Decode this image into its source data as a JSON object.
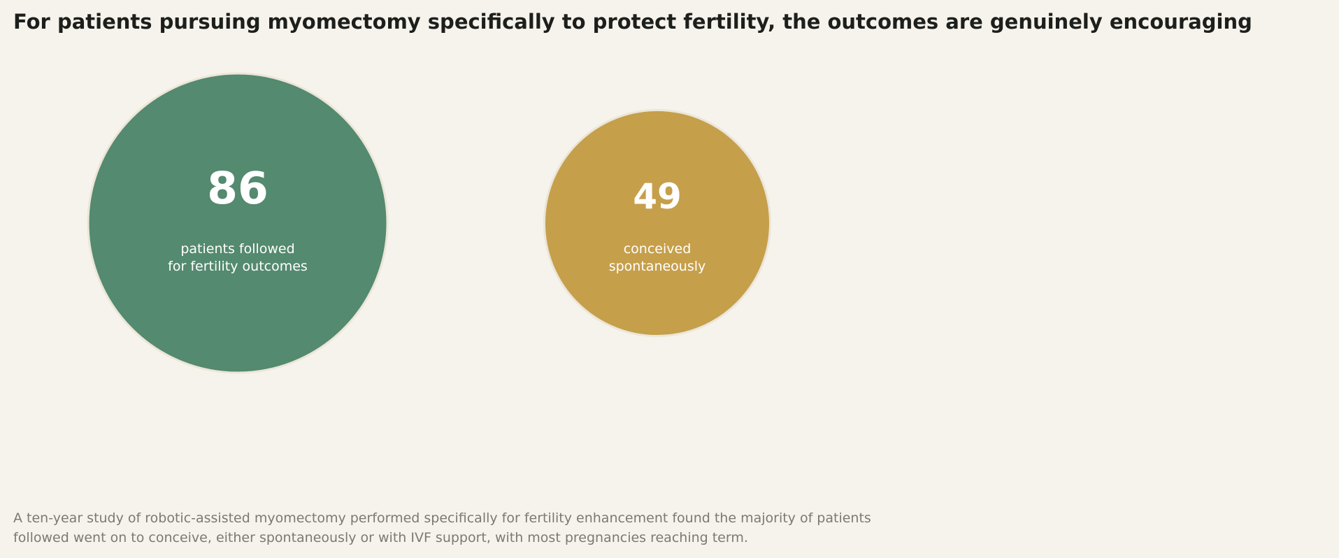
{
  "chart_data": {
    "type": "bubble",
    "title": "For patients pursuing myomectomy specifically to protect fertility, the outcomes are genuinely encouraging",
    "subtitle": "",
    "items": [
      {
        "value": 86,
        "label_lines": [
          "patients followed",
          "for fertility outcomes"
        ],
        "color": "#548a6f"
      },
      {
        "value": 49,
        "label_lines": [
          "conceived",
          "spontaneously"
        ],
        "color": "#c69f4b"
      }
    ],
    "legend": "none",
    "grid": false,
    "caption_lines": [
      "A ten-year study of robotic-assisted myomectomy performed specifically for fertility enhancement found the majority of patients",
      "followed went on to conceive, either spontaneously or with IVF support, with most pregnancies reaching term."
    ]
  }
}
